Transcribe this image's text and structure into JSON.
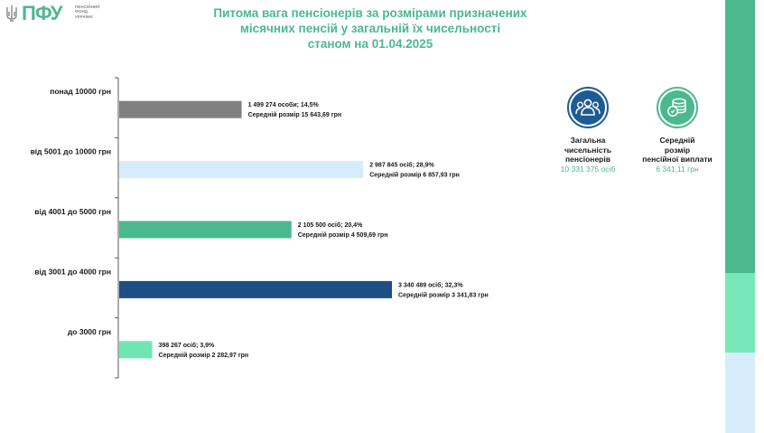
{
  "logo": {
    "text": "ПФУ",
    "sub_line1": "ПЕНСІЙНИЙ",
    "sub_line2": "ФОНД",
    "sub_line3": "УКРАЇНИ"
  },
  "title": {
    "line1": "Питома вага пенсіонерів за розмірами призначених",
    "line2": "місячних пенсій у загальній їх чисельності",
    "line3": "станом на 01.04.2025"
  },
  "chart_data": {
    "type": "bar",
    "orientation": "horizontal",
    "categories": [
      "понад 10000 грн",
      "від 5001 до 10000 грн",
      "від 4001 до 5000 грн",
      "від 3001 до 4000 грн",
      "до 3000 грн"
    ],
    "values": [
      14.5,
      28.9,
      20.4,
      32.3,
      3.9
    ],
    "counts": [
      "1 499 274 особи",
      "2 987 845 осіб",
      "2 105 500 осіб",
      "3 340 489 осіб",
      "398 267 осіб"
    ],
    "percents": [
      "14,5%",
      "28,9%",
      "20,4%",
      "32,3%",
      "3,9%"
    ],
    "avg_labels": [
      "Середній розмір 15 643,69 грн",
      "Середній розмір 6 857,93 грн",
      "Середній розмір 4 509,69 грн",
      "Середній розмір 3 341,83 грн",
      "Середній розмір 2 282,97 грн"
    ],
    "colors": [
      "#808080",
      "#d6ecfb",
      "#4bb88e",
      "#1e4f84",
      "#6ee6b2"
    ],
    "grid": false,
    "legend": "none"
  },
  "stats": {
    "total": {
      "label_line1": "Загальна",
      "label_line2": "чисельність",
      "label_line3": "пенсіонерів",
      "value": "10 331 375 осіб",
      "icon": "people-icon",
      "color": "#1e5b94"
    },
    "avg": {
      "label_line1": "Середній",
      "label_line2": "розмір",
      "label_line3": "пенсійної виплати",
      "value": "6 341,11 грн",
      "icon": "coins-icon",
      "color": "#4bb88e"
    }
  },
  "side_strip_colors": [
    "#4bb88e",
    "#78e8b8",
    "#d6ecfb"
  ]
}
